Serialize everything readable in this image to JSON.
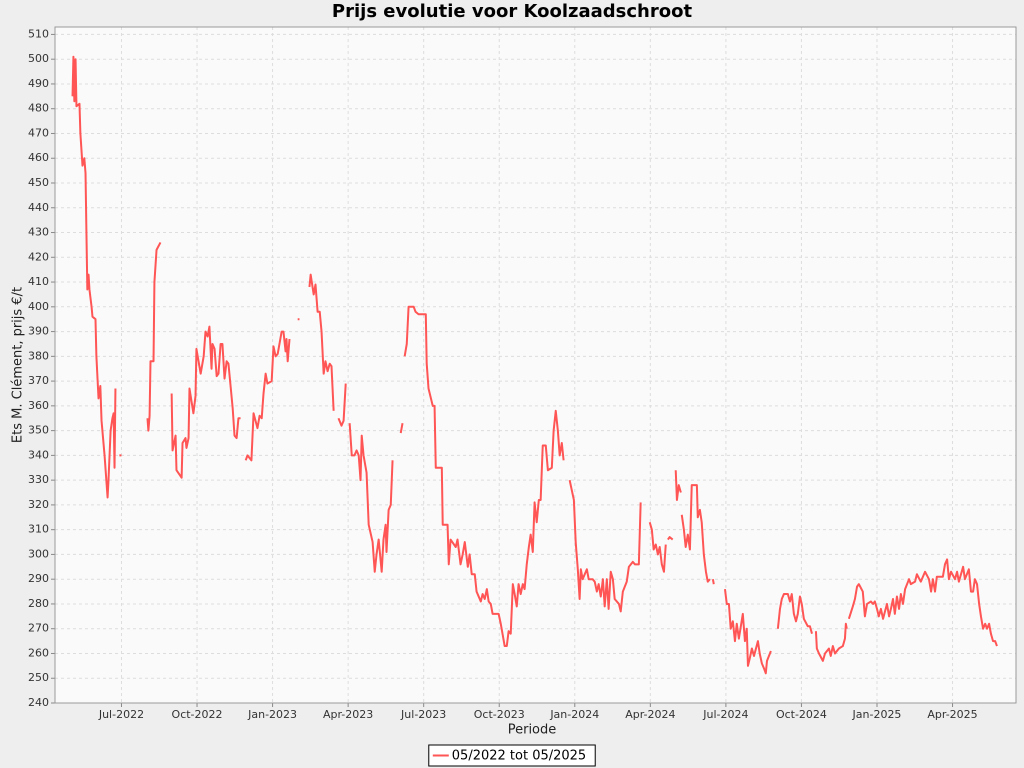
{
  "chart_data": {
    "type": "line",
    "title": "Prijs evolutie voor Koolzaadschroot",
    "x_label": "Periode",
    "y_label": "Ets M. Clément, prijs €/t",
    "xlim": [
      2022.28,
      2025.46
    ],
    "ylim": [
      240,
      513
    ],
    "xticks": [
      {
        "value": 2022.5,
        "label": "Jul-2022"
      },
      {
        "value": 2022.75,
        "label": "Oct-2022"
      },
      {
        "value": 2023.0,
        "label": "Jan-2023"
      },
      {
        "value": 2023.25,
        "label": "Apr-2023"
      },
      {
        "value": 2023.5,
        "label": "Jul-2023"
      },
      {
        "value": 2023.75,
        "label": "Oct-2023"
      },
      {
        "value": 2024.0,
        "label": "Jan-2024"
      },
      {
        "value": 2024.25,
        "label": "Apr-2024"
      },
      {
        "value": 2024.5,
        "label": "Jul-2024"
      },
      {
        "value": 2024.75,
        "label": "Oct-2024"
      },
      {
        "value": 2025.0,
        "label": "Jan-2025"
      },
      {
        "value": 2025.25,
        "label": "Apr-2025"
      }
    ],
    "yticks": [
      240,
      250,
      260,
      270,
      280,
      290,
      300,
      310,
      320,
      330,
      340,
      350,
      360,
      370,
      380,
      390,
      400,
      410,
      420,
      430,
      440,
      450,
      460,
      470,
      480,
      490,
      500,
      510
    ],
    "grid": true,
    "legend": "bottom",
    "x": [
      2022.338,
      2022.341,
      2022.344,
      2022.348,
      2022.351,
      2022.361,
      2022.364,
      2022.371,
      2022.377,
      2022.381,
      2022.384,
      2022.387,
      2022.391,
      2022.394,
      2022.401,
      2022.404,
      2022.414,
      2022.417,
      2022.424,
      2022.43,
      2022.434,
      2022.444,
      2022.454,
      2022.457,
      2022.464,
      2022.47,
      2022.474,
      2022.477,
      2022.48,
      null,
      2022.493,
      2022.5,
      null,
      2022.586,
      2022.589,
      2022.593,
      2022.596,
      2022.606,
      2022.609,
      2022.616,
      2022.629,
      null,
      2022.666,
      2022.669,
      2022.679,
      2022.682,
      2022.699,
      2022.702,
      2022.712,
      2022.715,
      2022.722,
      2022.725,
      2022.738,
      2022.745,
      2022.748,
      2022.762,
      2022.772,
      2022.778,
      2022.785,
      2022.791,
      2022.798,
      2022.801,
      2022.808,
      2022.815,
      2022.821,
      2022.828,
      2022.834,
      2022.841,
      2022.848,
      2022.854,
      2022.868,
      2022.874,
      2022.881,
      2022.887,
      2022.894,
      null,
      2022.911,
      2022.917,
      2022.93,
      2022.937,
      2022.95,
      2022.957,
      2022.964,
      2022.97,
      2022.977,
      2022.983,
      2022.997,
      2023.003,
      2023.01,
      2023.017,
      2023.03,
      2023.036,
      2023.043,
      2023.046,
      2023.05,
      2023.056,
      null,
      2023.083,
      2023.089,
      null,
      2023.122,
      2023.126,
      2023.136,
      2023.142,
      2023.149,
      2023.156,
      2023.162,
      2023.169,
      2023.175,
      2023.182,
      2023.189,
      2023.195,
      2023.202,
      null,
      2023.218,
      2023.228,
      2023.235,
      2023.242,
      null,
      2023.255,
      2023.262,
      2023.271,
      2023.278,
      2023.285,
      2023.291,
      2023.295,
      2023.301,
      2023.311,
      2023.318,
      2023.331,
      2023.338,
      2023.344,
      2023.351,
      2023.361,
      2023.367,
      2023.374,
      2023.377,
      2023.384,
      2023.391,
      2023.397,
      null,
      2023.424,
      2023.43,
      null,
      2023.437,
      2023.444,
      2023.45,
      2023.467,
      2023.473,
      2023.483,
      2023.507,
      2023.51,
      2023.516,
      2023.53,
      2023.536,
      2023.54,
      2023.56,
      2023.563,
      2023.579,
      2023.583,
      2023.589,
      2023.606,
      2023.612,
      2023.622,
      2023.629,
      2023.636,
      2023.646,
      2023.652,
      2023.659,
      2023.669,
      2023.675,
      2023.689,
      2023.695,
      2023.702,
      2023.709,
      2023.715,
      2023.722,
      2023.728,
      2023.748,
      2023.755,
      2023.768,
      2023.775,
      2023.781,
      2023.788,
      2023.795,
      2023.801,
      2023.808,
      2023.814,
      2023.821,
      2023.828,
      2023.834,
      2023.841,
      2023.848,
      2023.854,
      2023.861,
      2023.867,
      2023.874,
      2023.881,
      2023.887,
      2023.894,
      2023.904,
      2023.911,
      2023.924,
      2023.93,
      2023.937,
      2023.944,
      2023.95,
      2023.957,
      2023.963,
      null,
      2023.983,
      2023.99,
      2023.997,
      2024.003,
      2024.01,
      2024.016,
      2024.02,
      2024.026,
      2024.04,
      2024.046,
      2024.059,
      2024.066,
      2024.073,
      2024.079,
      2024.086,
      2024.093,
      2024.099,
      2024.106,
      2024.112,
      2024.119,
      2024.126,
      2024.132,
      2024.146,
      2024.152,
      2024.159,
      2024.172,
      2024.179,
      2024.192,
      2024.199,
      2024.212,
      2024.218,
      null,
      2024.248,
      2024.255,
      2024.261,
      2024.268,
      2024.275,
      2024.281,
      2024.288,
      2024.295,
      2024.301,
      null,
      2024.308,
      2024.314,
      2024.324,
      null,
      2024.334,
      2024.338,
      2024.344,
      2024.351,
      null,
      2024.354,
      2024.361,
      2024.367,
      2024.374,
      2024.381,
      2024.387,
      2024.404,
      2024.407,
      2024.414,
      2024.42,
      2024.427,
      2024.434,
      2024.44,
      2024.447,
      null,
      2024.457,
      2024.46,
      null,
      2024.497,
      2024.503,
      2024.51,
      2024.516,
      2024.523,
      2024.53,
      2024.536,
      2024.543,
      2024.556,
      2024.563,
      2024.569,
      2024.573,
      2024.579,
      2024.586,
      2024.593,
      2024.606,
      2024.612,
      2024.619,
      2024.626,
      2024.632,
      2024.636,
      2024.649,
      null,
      2024.672,
      2024.679,
      2024.685,
      2024.692,
      2024.705,
      2024.712,
      2024.718,
      2024.725,
      2024.732,
      2024.738,
      2024.745,
      2024.751,
      2024.758,
      2024.771,
      2024.778,
      2024.785,
      null,
      2024.798,
      2024.801,
      2024.808,
      2024.821,
      2024.828,
      2024.841,
      2024.847,
      2024.854,
      2024.861,
      2024.874,
      2024.887,
      2024.894,
      2024.897,
      2024.9,
      null,
      2024.907,
      2024.92,
      2024.927,
      2024.934,
      2024.94,
      2024.953,
      2024.96,
      2024.967,
      2024.98,
      2024.987,
      2024.993,
      2025.0,
      2025.006,
      2025.013,
      2025.02,
      2025.033,
      2025.04,
      2025.046,
      2025.053,
      2025.059,
      2025.066,
      2025.073,
      2025.079,
      2025.086,
      2025.093,
      2025.106,
      2025.112,
      2025.126,
      2025.132,
      2025.145,
      2025.159,
      2025.172,
      2025.179,
      2025.185,
      2025.192,
      2025.198,
      2025.218,
      2025.225,
      2025.232,
      2025.238,
      2025.245,
      2025.258,
      2025.265,
      2025.271,
      2025.285,
      2025.291,
      2025.304,
      2025.311,
      2025.318,
      2025.324,
      2025.331,
      2025.338,
      2025.344,
      2025.351,
      2025.358,
      2025.364,
      2025.371,
      2025.377,
      2025.384,
      2025.391,
      2025.397
    ],
    "series": [
      {
        "name": "05/2022 tot 05/2025",
        "color": "#ff5555",
        "values": [
          485,
          501,
          483,
          500,
          481,
          482,
          470,
          457,
          460,
          454,
          430,
          407,
          413,
          407,
          400,
          396,
          395,
          380,
          363,
          368,
          354,
          340,
          323,
          330,
          350,
          355,
          357,
          335,
          367,
          null,
          340,
          340,
          null,
          355,
          350,
          356,
          378,
          378,
          410,
          423,
          426,
          null,
          365,
          342,
          348,
          334,
          331,
          345,
          347,
          343,
          347,
          367,
          357,
          364,
          383,
          373,
          380,
          390,
          388,
          392,
          375,
          385,
          383,
          372,
          373,
          385,
          385,
          371,
          378,
          377,
          359,
          348,
          347,
          355,
          355,
          null,
          338,
          340,
          338,
          357,
          351,
          356,
          355,
          365,
          373,
          369,
          370,
          384,
          380,
          381,
          390,
          390,
          382,
          387,
          378,
          387,
          null,
          395,
          395,
          null,
          408,
          413,
          405,
          409,
          398,
          398,
          390,
          373,
          378,
          374,
          377,
          376,
          358,
          null,
          355,
          352,
          354,
          369,
          null,
          353,
          340,
          340,
          342,
          340,
          330,
          348,
          340,
          333,
          312,
          305,
          293,
          300,
          306,
          293,
          306,
          312,
          301,
          318,
          320,
          338,
          null,
          349,
          353,
          null,
          380,
          385,
          400,
          400,
          398,
          397,
          397,
          377,
          367,
          360,
          360,
          335,
          335,
          312,
          312,
          296,
          306,
          303,
          306,
          296,
          300,
          305,
          295,
          300,
          292,
          292,
          285,
          281,
          284,
          282,
          286,
          281,
          280,
          276,
          276,
          272,
          263,
          263,
          269,
          268,
          288,
          284,
          279,
          288,
          284,
          288,
          286,
          296,
          303,
          308,
          301,
          321,
          313,
          322,
          322,
          344,
          344,
          334,
          335,
          350,
          358,
          350,
          340,
          345,
          338,
          null,
          330,
          326,
          322,
          305,
          294,
          282,
          294,
          290,
          294,
          290,
          290,
          289,
          285,
          288,
          283,
          290,
          279,
          290,
          278,
          293,
          290,
          282,
          280,
          277,
          285,
          289,
          295,
          297,
          296,
          296,
          321,
          null,
          313,
          310,
          302,
          304,
          300,
          303,
          296,
          293,
          304,
          null,
          306,
          307,
          306,
          null,
          334,
          322,
          328,
          325,
          null,
          316,
          310,
          303,
          308,
          302,
          328,
          328,
          315,
          318,
          313,
          300,
          293,
          289,
          290,
          null,
          290,
          288,
          null,
          286,
          280,
          280,
          270,
          273,
          265,
          272,
          266,
          276,
          265,
          270,
          255,
          258,
          262,
          259,
          265,
          260,
          256,
          254,
          252,
          257,
          261,
          null,
          270,
          278,
          282,
          284,
          284,
          281,
          284,
          276,
          273,
          276,
          283,
          280,
          274,
          271,
          271,
          268,
          null,
          269,
          262,
          260,
          257,
          260,
          262,
          259,
          263,
          260,
          262,
          263,
          266,
          272,
          270,
          null,
          274,
          279,
          282,
          287,
          288,
          285,
          275,
          280,
          281,
          280,
          281,
          278,
          275,
          278,
          274,
          280,
          275,
          278,
          282,
          276,
          283,
          278,
          284,
          280,
          286,
          290,
          288,
          289,
          292,
          289,
          293,
          290,
          285,
          290,
          285,
          291,
          291,
          296,
          298,
          290,
          293,
          290,
          293,
          289,
          295,
          290,
          294,
          285,
          285,
          290,
          288,
          280,
          275,
          270,
          272,
          270,
          272,
          268,
          265,
          265,
          263
        ]
      }
    ]
  }
}
